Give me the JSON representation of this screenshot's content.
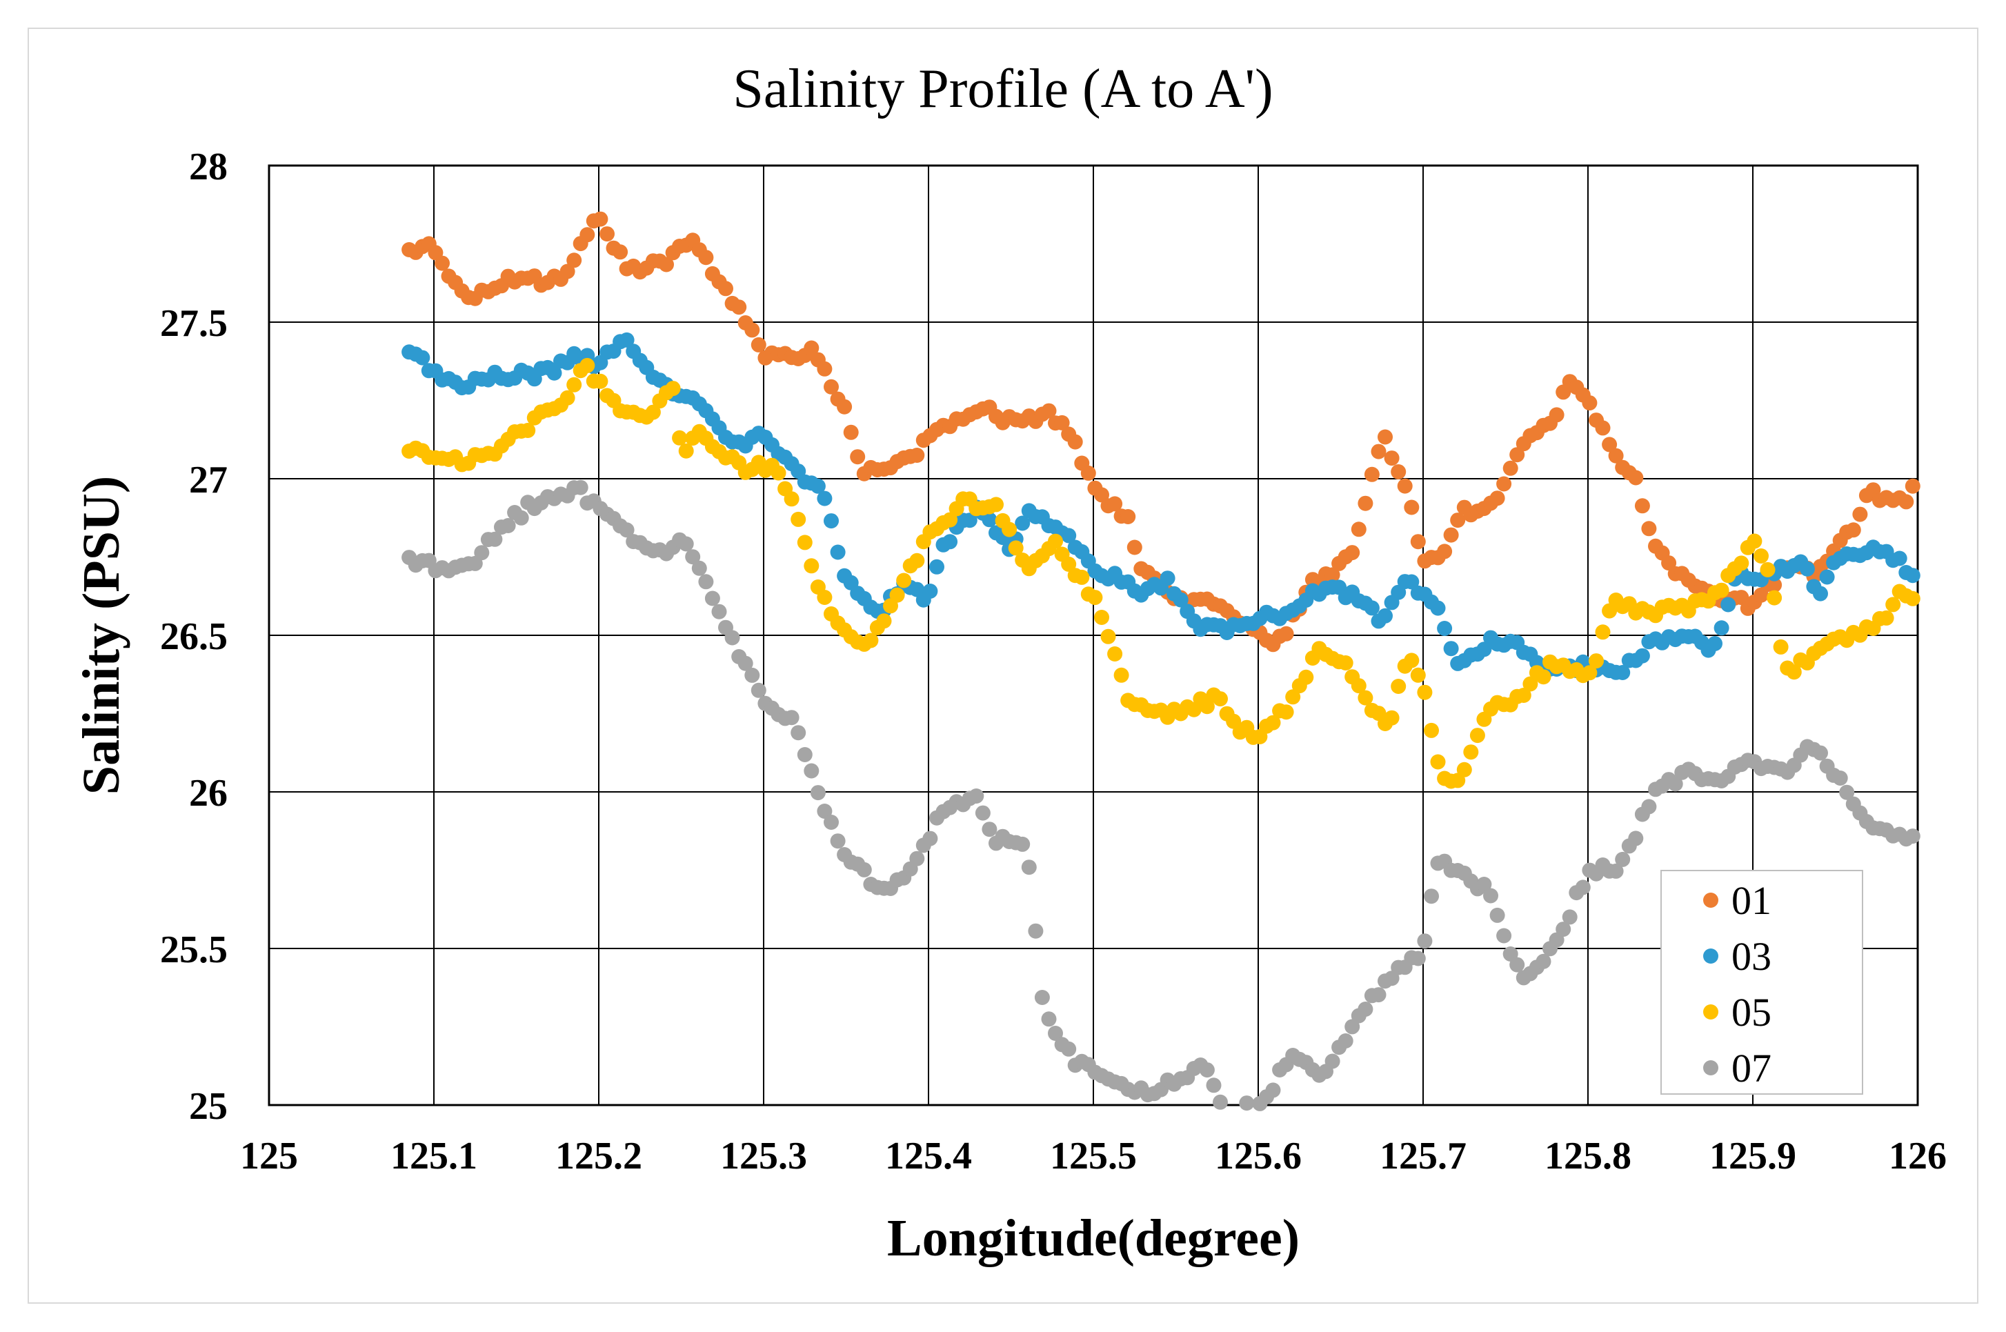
{
  "chart_data": {
    "type": "scatter",
    "title": "Salinity Profile (A to A')",
    "xlabel": "Longitude(degree)",
    "ylabel": "Salinity (PSU)",
    "xlim": [
      125,
      126
    ],
    "ylim": [
      25,
      28
    ],
    "xticks": [
      "125",
      "125.1",
      "125.2",
      "125.3",
      "125.4",
      "125.5",
      "125.6",
      "125.7",
      "125.8",
      "125.9",
      "126"
    ],
    "yticks": [
      "25",
      "25.5",
      "26",
      "26.5",
      "27",
      "27.5",
      "28"
    ],
    "grid": true,
    "legend_position": "bottom-right",
    "series": [
      {
        "name": "01",
        "color": "#ED7D31",
        "knots": [
          [
            125.085,
            27.72
          ],
          [
            125.095,
            27.76
          ],
          [
            125.11,
            27.65
          ],
          [
            125.12,
            27.58
          ],
          [
            125.14,
            27.63
          ],
          [
            125.16,
            27.63
          ],
          [
            125.18,
            27.65
          ],
          [
            125.19,
            27.75
          ],
          [
            125.2,
            27.85
          ],
          [
            125.21,
            27.73
          ],
          [
            125.22,
            27.66
          ],
          [
            125.24,
            27.69
          ],
          [
            125.255,
            27.76
          ],
          [
            125.27,
            27.66
          ],
          [
            125.29,
            27.5
          ],
          [
            125.3,
            27.39
          ],
          [
            125.32,
            27.4
          ],
          [
            125.33,
            27.4
          ],
          [
            125.35,
            27.22
          ],
          [
            125.36,
            27.02
          ],
          [
            125.38,
            27.04
          ],
          [
            125.395,
            27.1
          ],
          [
            125.41,
            27.16
          ],
          [
            125.43,
            27.23
          ],
          [
            125.45,
            27.18
          ],
          [
            125.475,
            27.21
          ],
          [
            125.49,
            27.1
          ],
          [
            125.5,
            26.96
          ],
          [
            125.52,
            26.88
          ],
          [
            125.53,
            26.7
          ],
          [
            125.55,
            26.62
          ],
          [
            125.57,
            26.6
          ],
          [
            125.585,
            26.55
          ],
          [
            125.6,
            26.5
          ],
          [
            125.615,
            26.48
          ],
          [
            125.63,
            26.66
          ],
          [
            125.645,
            26.7
          ],
          [
            125.66,
            26.8
          ],
          [
            125.675,
            27.14
          ],
          [
            125.69,
            26.97
          ],
          [
            125.7,
            26.75
          ],
          [
            125.71,
            26.73
          ],
          [
            125.725,
            26.9
          ],
          [
            125.74,
            26.9
          ],
          [
            125.76,
            27.1
          ],
          [
            125.78,
            27.2
          ],
          [
            125.79,
            27.32
          ],
          [
            125.8,
            27.25
          ],
          [
            125.815,
            27.1
          ],
          [
            125.83,
            26.98
          ],
          [
            125.84,
            26.78
          ],
          [
            125.86,
            26.67
          ],
          [
            125.88,
            26.62
          ],
          [
            125.9,
            26.6
          ],
          [
            125.92,
            26.72
          ],
          [
            125.94,
            26.7
          ],
          [
            125.96,
            26.84
          ],
          [
            125.97,
            26.96
          ],
          [
            125.99,
            26.92
          ],
          [
            126,
            26.98
          ]
        ]
      },
      {
        "name": "03",
        "color": "#2E9AD0",
        "knots": [
          [
            125.085,
            27.4
          ],
          [
            125.1,
            27.35
          ],
          [
            125.115,
            27.29
          ],
          [
            125.13,
            27.33
          ],
          [
            125.15,
            27.33
          ],
          [
            125.17,
            27.34
          ],
          [
            125.185,
            27.39
          ],
          [
            125.2,
            27.37
          ],
          [
            125.215,
            27.45
          ],
          [
            125.23,
            27.34
          ],
          [
            125.25,
            27.27
          ],
          [
            125.265,
            27.21
          ],
          [
            125.285,
            27.1
          ],
          [
            125.3,
            27.14
          ],
          [
            125.32,
            27.02
          ],
          [
            125.335,
            26.97
          ],
          [
            125.35,
            26.68
          ],
          [
            125.37,
            26.56
          ],
          [
            125.385,
            26.67
          ],
          [
            125.4,
            26.62
          ],
          [
            125.41,
            26.8
          ],
          [
            125.43,
            26.9
          ],
          [
            125.45,
            26.78
          ],
          [
            125.46,
            26.89
          ],
          [
            125.48,
            26.85
          ],
          [
            125.5,
            26.72
          ],
          [
            125.52,
            26.66
          ],
          [
            125.53,
            26.62
          ],
          [
            125.545,
            26.68
          ],
          [
            125.56,
            26.54
          ],
          [
            125.58,
            26.52
          ],
          [
            125.6,
            26.56
          ],
          [
            125.62,
            26.56
          ],
          [
            125.64,
            26.66
          ],
          [
            125.66,
            26.62
          ],
          [
            125.675,
            26.55
          ],
          [
            125.69,
            26.68
          ],
          [
            125.71,
            26.6
          ],
          [
            125.72,
            26.39
          ],
          [
            125.74,
            26.48
          ],
          [
            125.76,
            26.46
          ],
          [
            125.78,
            26.38
          ],
          [
            125.8,
            26.4
          ],
          [
            125.82,
            26.38
          ],
          [
            125.84,
            26.48
          ],
          [
            125.86,
            26.5
          ],
          [
            125.875,
            26.44
          ],
          [
            125.89,
            26.68
          ],
          [
            125.91,
            26.7
          ],
          [
            125.93,
            26.74
          ],
          [
            125.94,
            26.62
          ],
          [
            125.95,
            26.76
          ],
          [
            125.97,
            26.76
          ],
          [
            125.98,
            26.78
          ],
          [
            126,
            26.68
          ]
        ]
      },
      {
        "name": "05",
        "color": "#FFC000",
        "knots": [
          [
            125.085,
            27.1
          ],
          [
            125.1,
            27.08
          ],
          [
            125.12,
            27.05
          ],
          [
            125.14,
            27.1
          ],
          [
            125.16,
            27.18
          ],
          [
            125.18,
            27.25
          ],
          [
            125.19,
            27.36
          ],
          [
            125.2,
            27.31
          ],
          [
            125.215,
            27.22
          ],
          [
            125.23,
            27.2
          ],
          [
            125.245,
            27.3
          ],
          [
            125.25,
            27.08
          ],
          [
            125.26,
            27.14
          ],
          [
            125.28,
            27.06
          ],
          [
            125.29,
            27.03
          ],
          [
            125.305,
            27.04
          ],
          [
            125.32,
            26.9
          ],
          [
            125.335,
            26.62
          ],
          [
            125.35,
            26.5
          ],
          [
            125.365,
            26.47
          ],
          [
            125.38,
            26.62
          ],
          [
            125.4,
            26.82
          ],
          [
            125.42,
            26.92
          ],
          [
            125.44,
            26.92
          ],
          [
            125.46,
            26.72
          ],
          [
            125.475,
            26.8
          ],
          [
            125.49,
            26.7
          ],
          [
            125.5,
            26.62
          ],
          [
            125.51,
            26.5
          ],
          [
            125.52,
            26.3
          ],
          [
            125.54,
            26.25
          ],
          [
            125.56,
            26.27
          ],
          [
            125.575,
            26.3
          ],
          [
            125.59,
            26.2
          ],
          [
            125.6,
            26.18
          ],
          [
            125.62,
            26.28
          ],
          [
            125.635,
            26.45
          ],
          [
            125.65,
            26.42
          ],
          [
            125.67,
            26.26
          ],
          [
            125.68,
            26.21
          ],
          [
            125.69,
            26.43
          ],
          [
            125.7,
            26.35
          ],
          [
            125.71,
            26.05
          ],
          [
            125.72,
            26.03
          ],
          [
            125.74,
            26.25
          ],
          [
            125.76,
            26.32
          ],
          [
            125.78,
            26.42
          ],
          [
            125.8,
            26.35
          ],
          [
            125.815,
            26.6
          ],
          [
            125.84,
            26.58
          ],
          [
            125.86,
            26.58
          ],
          [
            125.88,
            26.65
          ],
          [
            125.9,
            26.8
          ],
          [
            125.91,
            26.7
          ],
          [
            125.92,
            26.38
          ],
          [
            125.94,
            26.45
          ],
          [
            125.96,
            26.5
          ],
          [
            125.975,
            26.52
          ],
          [
            125.99,
            26.64
          ],
          [
            126,
            26.63
          ]
        ]
      },
      {
        "name": "07",
        "color": "#A5A5A5",
        "knots": [
          [
            125.085,
            26.74
          ],
          [
            125.1,
            26.72
          ],
          [
            125.12,
            26.71
          ],
          [
            125.14,
            26.84
          ],
          [
            125.16,
            26.92
          ],
          [
            125.175,
            26.93
          ],
          [
            125.185,
            26.98
          ],
          [
            125.2,
            26.9
          ],
          [
            125.22,
            26.82
          ],
          [
            125.235,
            26.75
          ],
          [
            125.25,
            26.82
          ],
          [
            125.27,
            26.6
          ],
          [
            125.285,
            26.44
          ],
          [
            125.3,
            26.3
          ],
          [
            125.32,
            26.22
          ],
          [
            125.335,
            25.95
          ],
          [
            125.35,
            25.8
          ],
          [
            125.37,
            25.68
          ],
          [
            125.39,
            25.75
          ],
          [
            125.41,
            25.96
          ],
          [
            125.43,
            25.98
          ],
          [
            125.44,
            25.85
          ],
          [
            125.46,
            25.82
          ],
          [
            125.47,
            25.3
          ],
          [
            125.49,
            25.13
          ],
          [
            125.51,
            25.08
          ],
          [
            125.53,
            25.04
          ],
          [
            125.555,
            25.08
          ],
          [
            125.565,
            25.14
          ],
          [
            125.58,
            24.97
          ],
          [
            125.605,
            25.02
          ],
          [
            125.62,
            25.17
          ],
          [
            125.64,
            25.1
          ],
          [
            125.66,
            25.28
          ],
          [
            125.68,
            25.4
          ],
          [
            125.7,
            25.5
          ],
          [
            125.71,
            25.8
          ],
          [
            125.72,
            25.75
          ],
          [
            125.74,
            25.68
          ],
          [
            125.76,
            25.4
          ],
          [
            125.78,
            25.5
          ],
          [
            125.8,
            25.75
          ],
          [
            125.82,
            25.76
          ],
          [
            125.84,
            26.0
          ],
          [
            125.86,
            26.06
          ],
          [
            125.88,
            26.04
          ],
          [
            125.9,
            26.1
          ],
          [
            125.92,
            26.05
          ],
          [
            125.935,
            26.15
          ],
          [
            125.95,
            26.05
          ],
          [
            125.97,
            25.9
          ],
          [
            125.99,
            25.85
          ],
          [
            126,
            25.84
          ]
        ]
      }
    ]
  }
}
